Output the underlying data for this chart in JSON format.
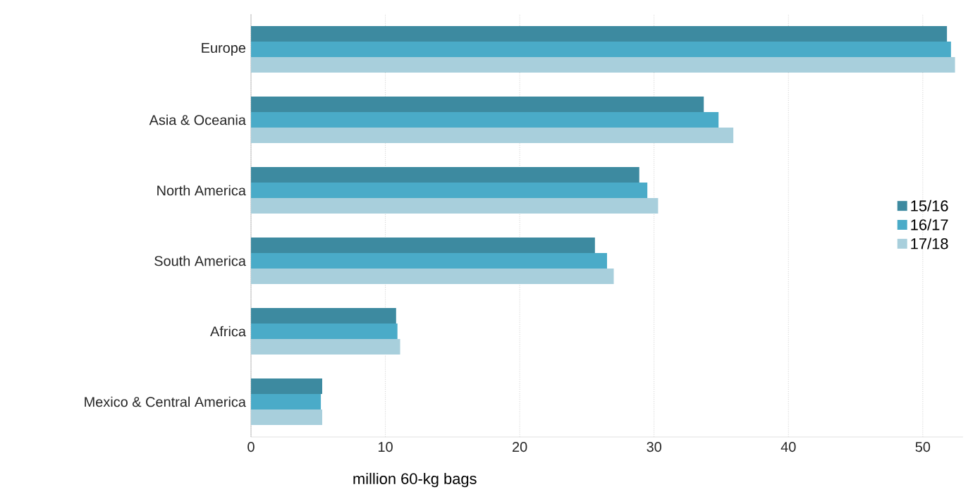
{
  "chart_data": {
    "type": "bar",
    "orientation": "horizontal",
    "xlabel": "million 60-kg bags",
    "categories": [
      "Europe",
      "Asia & Oceania",
      "North America",
      "South America",
      "Africa",
      "Mexico & Central America"
    ],
    "series": [
      {
        "name": "15/16",
        "color": "#3d8aa0",
        "values": [
          51.8,
          33.7,
          28.9,
          25.6,
          10.8,
          5.3
        ]
      },
      {
        "name": "16/17",
        "color": "#4aabc8",
        "values": [
          52.1,
          34.8,
          29.5,
          26.5,
          10.9,
          5.2
        ]
      },
      {
        "name": "17/18",
        "color": "#a8cfdc",
        "values": [
          52.4,
          35.9,
          30.3,
          27.0,
          11.1,
          5.3
        ]
      }
    ],
    "xlim": [
      0,
      53
    ],
    "xticks": [
      0,
      10,
      20,
      30,
      40,
      50
    ],
    "grid": "x",
    "legend": "right"
  }
}
